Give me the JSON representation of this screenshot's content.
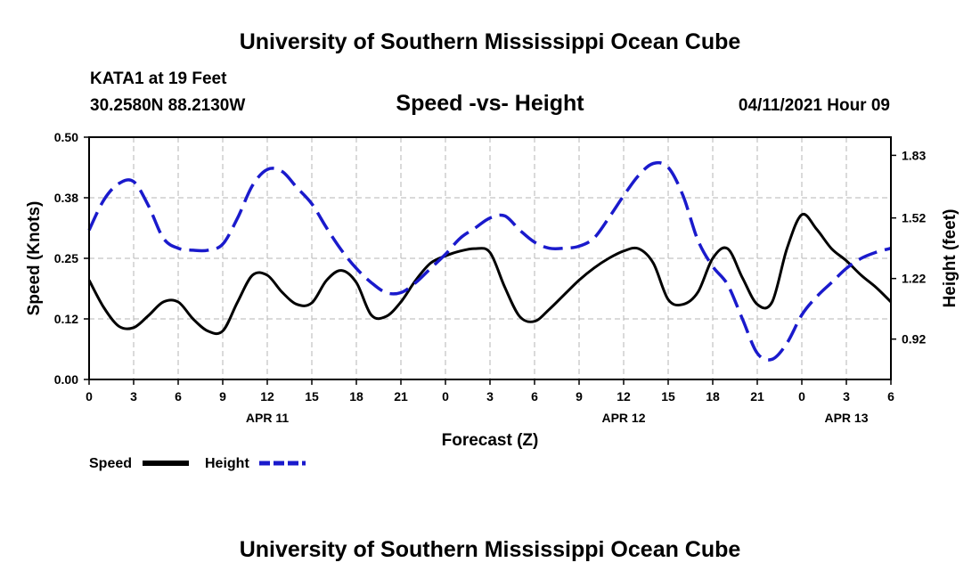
{
  "header": {
    "title_top": "University of Southern Mississippi Ocean Cube",
    "title_bottom": "University of Southern Mississippi Ocean Cube",
    "station": "KATA1 at 19 Feet",
    "coords": "30.2580N  88.2130W",
    "datetime": "04/11/2021 Hour 09"
  },
  "legend": {
    "speed_label": "Speed",
    "height_label": "Height"
  },
  "colors": {
    "speed": "#000000",
    "height": "#1a1acc",
    "grid": "#b4b4b4"
  },
  "chart_data": {
    "type": "line",
    "title": "Speed -vs- Height",
    "xlabel": "Forecast (Z)",
    "ylabel": "Speed (Knots)",
    "y2label": "Height (feet)",
    "x_range": [
      0,
      54
    ],
    "x_ticks": [
      {
        "x": 0,
        "label": "0"
      },
      {
        "x": 3,
        "label": "3"
      },
      {
        "x": 6,
        "label": "6"
      },
      {
        "x": 9,
        "label": "9"
      },
      {
        "x": 12,
        "label": "12"
      },
      {
        "x": 15,
        "label": "15"
      },
      {
        "x": 18,
        "label": "18"
      },
      {
        "x": 21,
        "label": "21"
      },
      {
        "x": 24,
        "label": "0"
      },
      {
        "x": 27,
        "label": "3"
      },
      {
        "x": 30,
        "label": "6"
      },
      {
        "x": 33,
        "label": "9"
      },
      {
        "x": 36,
        "label": "12"
      },
      {
        "x": 39,
        "label": "15"
      },
      {
        "x": 42,
        "label": "18"
      },
      {
        "x": 45,
        "label": "21"
      },
      {
        "x": 48,
        "label": "0"
      },
      {
        "x": 51,
        "label": "3"
      },
      {
        "x": 54,
        "label": "6"
      }
    ],
    "date_labels": [
      {
        "x": 12,
        "label": "APR 11"
      },
      {
        "x": 36,
        "label": "APR 12"
      },
      {
        "x": 51,
        "label": "APR 13"
      }
    ],
    "ylim": [
      0,
      0.5
    ],
    "y_ticks": [
      {
        "value": 0.0,
        "label": "0.00"
      },
      {
        "value": 0.125,
        "label": "0.12"
      },
      {
        "value": 0.25,
        "label": "0.25"
      },
      {
        "value": 0.375,
        "label": "0.38"
      },
      {
        "value": 0.5,
        "label": "0.50"
      }
    ],
    "y2lim": [
      0.72,
      1.92
    ],
    "y2_ticks": [
      {
        "value": 0.92,
        "label": "0.92"
      },
      {
        "value": 1.22,
        "label": "1.22"
      },
      {
        "value": 1.52,
        "label": "1.52"
      },
      {
        "value": 1.83,
        "label": "1.83"
      }
    ],
    "series": [
      {
        "name": "Speed",
        "axis": "left",
        "x": [
          0,
          1,
          2,
          3,
          4,
          5,
          6,
          7,
          8,
          9,
          10,
          11,
          12,
          13,
          14,
          15,
          16,
          17,
          18,
          19,
          20,
          21,
          22,
          23,
          24,
          25,
          26,
          27,
          28,
          29,
          30,
          31,
          32,
          33,
          34,
          35,
          36,
          37,
          38,
          39,
          40,
          41,
          42,
          43,
          44,
          45,
          46,
          47,
          48,
          49,
          50,
          51,
          52,
          53,
          54
        ],
        "values": [
          0.205,
          0.148,
          0.11,
          0.107,
          0.132,
          0.16,
          0.16,
          0.125,
          0.1,
          0.1,
          0.16,
          0.215,
          0.215,
          0.18,
          0.155,
          0.158,
          0.205,
          0.225,
          0.2,
          0.133,
          0.13,
          0.16,
          0.205,
          0.24,
          0.255,
          0.265,
          0.27,
          0.262,
          0.19,
          0.13,
          0.12,
          0.145,
          0.175,
          0.205,
          0.23,
          0.25,
          0.265,
          0.27,
          0.24,
          0.165,
          0.155,
          0.18,
          0.25,
          0.27,
          0.21,
          0.155,
          0.16,
          0.27,
          0.34,
          0.31,
          0.27,
          0.245,
          0.215,
          0.19,
          0.16
        ]
      },
      {
        "name": "Height",
        "axis": "right",
        "x": [
          0,
          1,
          2,
          3,
          4,
          5,
          6,
          7,
          8,
          9,
          10,
          11,
          12,
          13,
          14,
          15,
          16,
          17,
          18,
          19,
          20,
          21,
          22,
          23,
          24,
          25,
          26,
          27,
          28,
          29,
          30,
          31,
          32,
          33,
          34,
          35,
          36,
          37,
          38,
          39,
          40,
          41,
          42,
          43,
          44,
          45,
          46,
          47,
          48,
          49,
          50,
          51,
          52,
          53,
          54
        ],
        "values": [
          1.46,
          1.61,
          1.69,
          1.7,
          1.58,
          1.42,
          1.37,
          1.36,
          1.36,
          1.39,
          1.52,
          1.68,
          1.76,
          1.75,
          1.67,
          1.59,
          1.47,
          1.36,
          1.27,
          1.2,
          1.15,
          1.15,
          1.2,
          1.27,
          1.34,
          1.42,
          1.47,
          1.52,
          1.53,
          1.46,
          1.4,
          1.37,
          1.37,
          1.38,
          1.42,
          1.52,
          1.63,
          1.73,
          1.79,
          1.77,
          1.63,
          1.41,
          1.28,
          1.19,
          1.02,
          0.85,
          0.82,
          0.9,
          1.04,
          1.13,
          1.2,
          1.27,
          1.32,
          1.35,
          1.37
        ]
      }
    ]
  }
}
